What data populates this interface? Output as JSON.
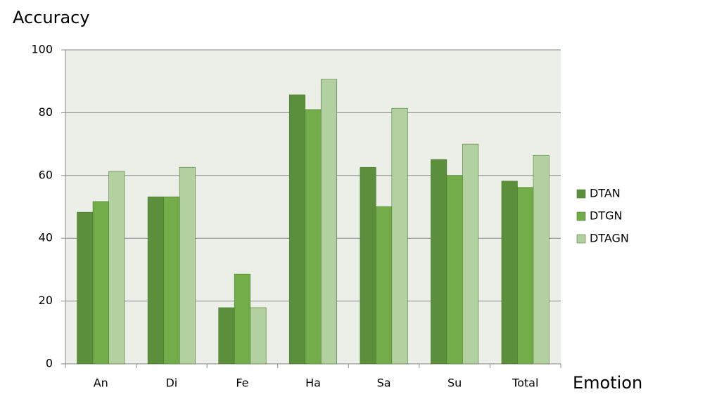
{
  "chart_data": {
    "type": "bar",
    "y_label": "Accuracy",
    "x_label": "Emotion",
    "categories": [
      "An",
      "Di",
      "Fe",
      "Ha",
      "Sa",
      "Su",
      "Total"
    ],
    "series": [
      {
        "name": "DTAN",
        "color": "#5b8f3c",
        "values": [
          48.3,
          53.2,
          17.9,
          85.7,
          62.6,
          65.1,
          58.2
        ]
      },
      {
        "name": "DTGN",
        "color": "#72ad4a",
        "values": [
          51.7,
          53.2,
          28.6,
          81.0,
          50.1,
          60.0,
          56.2
        ]
      },
      {
        "name": "DTAGN",
        "color": "#b3d0a0",
        "values": [
          61.3,
          62.6,
          17.9,
          90.6,
          81.4,
          70.0,
          66.4
        ]
      }
    ],
    "ylim": [
      0,
      100
    ],
    "yticks": [
      0,
      20,
      40,
      60,
      80,
      100
    ],
    "grid": true,
    "legend": "right"
  }
}
